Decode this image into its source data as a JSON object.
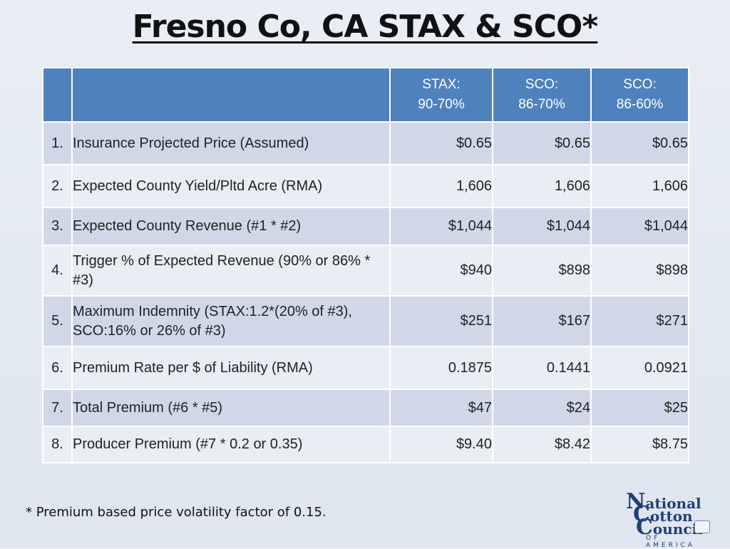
{
  "title": "Fresno Co, CA STAX & SCO*",
  "table": {
    "headers": [
      {
        "line1": "",
        "line2": ""
      },
      {
        "line1": "",
        "line2": ""
      },
      {
        "line1": "STAX:",
        "line2": "90-70%"
      },
      {
        "line1": "SCO:",
        "line2": "86-70%"
      },
      {
        "line1": "SCO:",
        "line2": "86-60%"
      }
    ],
    "rows": [
      {
        "num": "1.",
        "label": "Insurance Projected Price (Assumed)",
        "v1": "$0.65",
        "v2": "$0.65",
        "v3": "$0.65"
      },
      {
        "num": "2.",
        "label": "Expected County Yield/Pltd Acre (RMA)",
        "v1": "1,606",
        "v2": "1,606",
        "v3": "1,606"
      },
      {
        "num": "3.",
        "label": "Expected County Revenue (#1 * #2)",
        "v1": "$1,044",
        "v2": "$1,044",
        "v3": "$1,044"
      },
      {
        "num": "4.",
        "label": "Trigger % of Expected Revenue (90% or 86% * #3)",
        "v1": "$940",
        "v2": "$898",
        "v3": "$898"
      },
      {
        "num": "5.",
        "label": "Maximum Indemnity (STAX:1.2*(20% of #3), SCO:16% or 26% of #3)",
        "v1": "$251",
        "v2": "$167",
        "v3": "$271"
      },
      {
        "num": "6.",
        "label": "Premium Rate per $ of Liability (RMA)",
        "v1": "0.1875",
        "v2": "0.1441",
        "v3": "0.0921"
      },
      {
        "num": "7.",
        "label": "Total Premium (#6 * #5)",
        "v1": "$47",
        "v2": "$24",
        "v3": "$25"
      },
      {
        "num": "8.",
        "label": "Producer Premium (#7 * 0.2 or 0.35)",
        "v1": "$9.40",
        "v2": "$8.42",
        "v3": "$8.75"
      }
    ]
  },
  "footnote": "* Premium based price volatility factor of 0.15.",
  "logo": {
    "line1_initial": "N",
    "line1_rest": "ational",
    "line2_initial": "C",
    "line2_rest": "otton",
    "line3_initial": "C",
    "line3_rest": "ouncil",
    "sub": "OF AMERICA"
  }
}
